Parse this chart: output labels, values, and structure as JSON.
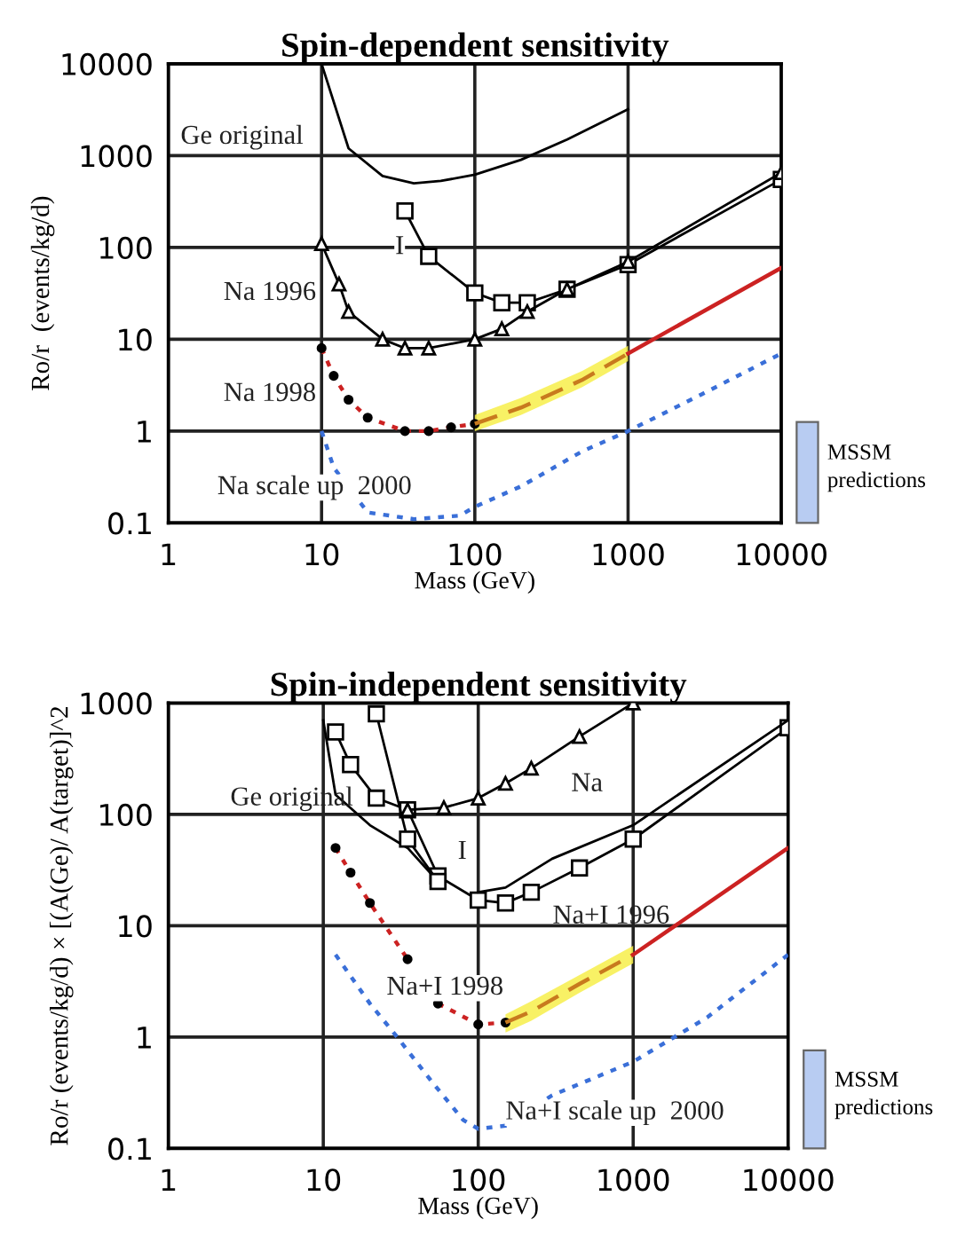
{
  "chart_data": [
    {
      "type": "line",
      "title": "Spin-dependent sensitivity",
      "xlabel": "Mass (GeV)",
      "ylabel": "Ro/r  (events/kg/d)",
      "log": "xy",
      "grid": true,
      "xlim": [
        1,
        10000
      ],
      "xticks": [
        1,
        10,
        100,
        1000,
        10000
      ],
      "ylim": [
        0.1,
        10000
      ],
      "yticks": [
        0.1,
        1,
        10,
        100,
        1000,
        10000
      ],
      "series": [
        {
          "color": "#000000",
          "marker": "none",
          "line_style": "solid",
          "x": [
            10,
            15,
            25,
            40,
            60,
            100,
            200,
            400,
            1000
          ],
          "values": [
            10000,
            1200,
            600,
            500,
            530,
            620,
            900,
            1500,
            3200
          ]
        },
        {
          "color": "#000000",
          "marker": "square",
          "line_style": "solid",
          "x": [
            35,
            50,
            100,
            150,
            220,
            400,
            1000,
            10000
          ],
          "values": [
            250,
            80,
            32,
            25,
            25,
            35,
            65,
            550
          ]
        },
        {
          "color": "#000000",
          "marker": "triangle",
          "line_style": "solid",
          "x": [
            10,
            13,
            15,
            25,
            35,
            50,
            100,
            150,
            220,
            400,
            1000,
            10000
          ],
          "values": [
            110,
            40,
            20,
            10,
            8,
            8,
            10,
            13,
            20,
            35,
            70,
            650
          ]
        },
        {
          "color": "#cc2222",
          "marker": "circle",
          "line_style": "dotted",
          "x": [
            10,
            12,
            15,
            20,
            35,
            50,
            70,
            100
          ],
          "values": [
            8,
            4,
            2.2,
            1.4,
            1,
            1,
            1.1,
            1.2
          ]
        },
        {
          "color": "#c87a1e",
          "marker": "none",
          "line_style": "dashed",
          "x": [
            100,
            200,
            500,
            1000
          ],
          "values": [
            1.2,
            1.8,
            3.6,
            7
          ],
          "lower": [
            1,
            1.5,
            3,
            5.8
          ],
          "upper": [
            1.5,
            2.3,
            4.5,
            8.5
          ]
        },
        {
          "color": "#cc2222",
          "marker": "none",
          "line_style": "solid",
          "x": [
            1000,
            10000
          ],
          "values": [
            7,
            60
          ]
        },
        {
          "color": "#3a6fd8",
          "marker": "none",
          "line_style": "dotted",
          "x": [
            10,
            12,
            20,
            40,
            80,
            100,
            200,
            500,
            1000,
            3000,
            10000
          ],
          "values": [
            1,
            0.4,
            0.13,
            0.11,
            0.12,
            0.15,
            0.25,
            0.6,
            1,
            2.5,
            7
          ]
        }
      ],
      "annotations": [
        "Ge original",
        "I",
        "Na 1996",
        "Na 1998",
        "Na scale up  2000",
        "MSSM predictions"
      ]
    },
    {
      "type": "line",
      "title": "Spin-independent sensitivity",
      "xlabel": "Mass (GeV)",
      "ylabel": "Ro/r (events/kg/d) × [(A(Ge)/ A(target)]^2",
      "log": "xy",
      "grid": true,
      "xlim": [
        1,
        10000
      ],
      "xticks": [
        1,
        10,
        100,
        1000,
        10000
      ],
      "ylim": [
        0.1,
        1000
      ],
      "yticks": [
        0.1,
        1,
        10,
        100,
        1000
      ],
      "series": [
        {
          "color": "#000000",
          "marker": "none",
          "line_style": "solid",
          "x": [
            10,
            12,
            20,
            35,
            55
          ],
          "values": [
            700,
            150,
            80,
            50,
            25
          ]
        },
        {
          "color": "#000000",
          "marker": "square",
          "line_style": "solid",
          "x": [
            12,
            15,
            22,
            35,
            55,
            100,
            150,
            220,
            450,
            1000,
            10000
          ],
          "values": [
            550,
            280,
            140,
            110,
            28,
            17,
            16,
            20,
            33,
            60,
            600
          ]
        },
        {
          "color": "#000000",
          "marker": "square",
          "line_style": "solid",
          "x": [
            22,
            35,
            55
          ],
          "values": [
            800,
            60,
            25
          ]
        },
        {
          "color": "#000000",
          "marker": "none",
          "line_style": "solid",
          "x": [
            100,
            150,
            300,
            1000,
            10000
          ],
          "values": [
            20,
            22,
            40,
            80,
            700
          ]
        },
        {
          "color": "#000000",
          "marker": "triangle",
          "line_style": "solid",
          "x": [
            35,
            60,
            100,
            150,
            220,
            450,
            1000
          ],
          "values": [
            110,
            115,
            140,
            190,
            260,
            500,
            1000
          ]
        },
        {
          "color": "#cc2222",
          "marker": "circle",
          "line_style": "dotted",
          "x": [
            12,
            15,
            20,
            35
          ],
          "values": [
            50,
            30,
            16,
            5
          ]
        },
        {
          "color": "#cc2222",
          "marker": "circle",
          "line_style": "dotted",
          "x": [
            55,
            100,
            150
          ],
          "values": [
            2,
            1.3,
            1.35
          ]
        },
        {
          "color": "#c87a1e",
          "marker": "none",
          "line_style": "dashed",
          "x": [
            150,
            220,
            450,
            1000
          ],
          "values": [
            1.35,
            1.7,
            3,
            5.5
          ],
          "lower": [
            1.1,
            1.4,
            2.5,
            4.6
          ],
          "upper": [
            1.6,
            2.1,
            3.6,
            6.6
          ]
        },
        {
          "color": "#cc2222",
          "marker": "none",
          "line_style": "solid",
          "x": [
            1000,
            10000
          ],
          "values": [
            5.5,
            50
          ]
        },
        {
          "color": "#3a6fd8",
          "marker": "none",
          "line_style": "dotted",
          "x": [
            12,
            20,
            30,
            50,
            80,
            100,
            150,
            300,
            1000,
            3000,
            10000
          ],
          "values": [
            5.5,
            2,
            1,
            0.4,
            0.18,
            0.15,
            0.16,
            0.3,
            0.6,
            1.5,
            5.5
          ]
        }
      ],
      "annotations": [
        "Ge original",
        "Na",
        "I",
        "Na+I 1996",
        "Na+I 1998",
        "Na+I scale up  2000",
        "MSSM predictions"
      ]
    }
  ]
}
